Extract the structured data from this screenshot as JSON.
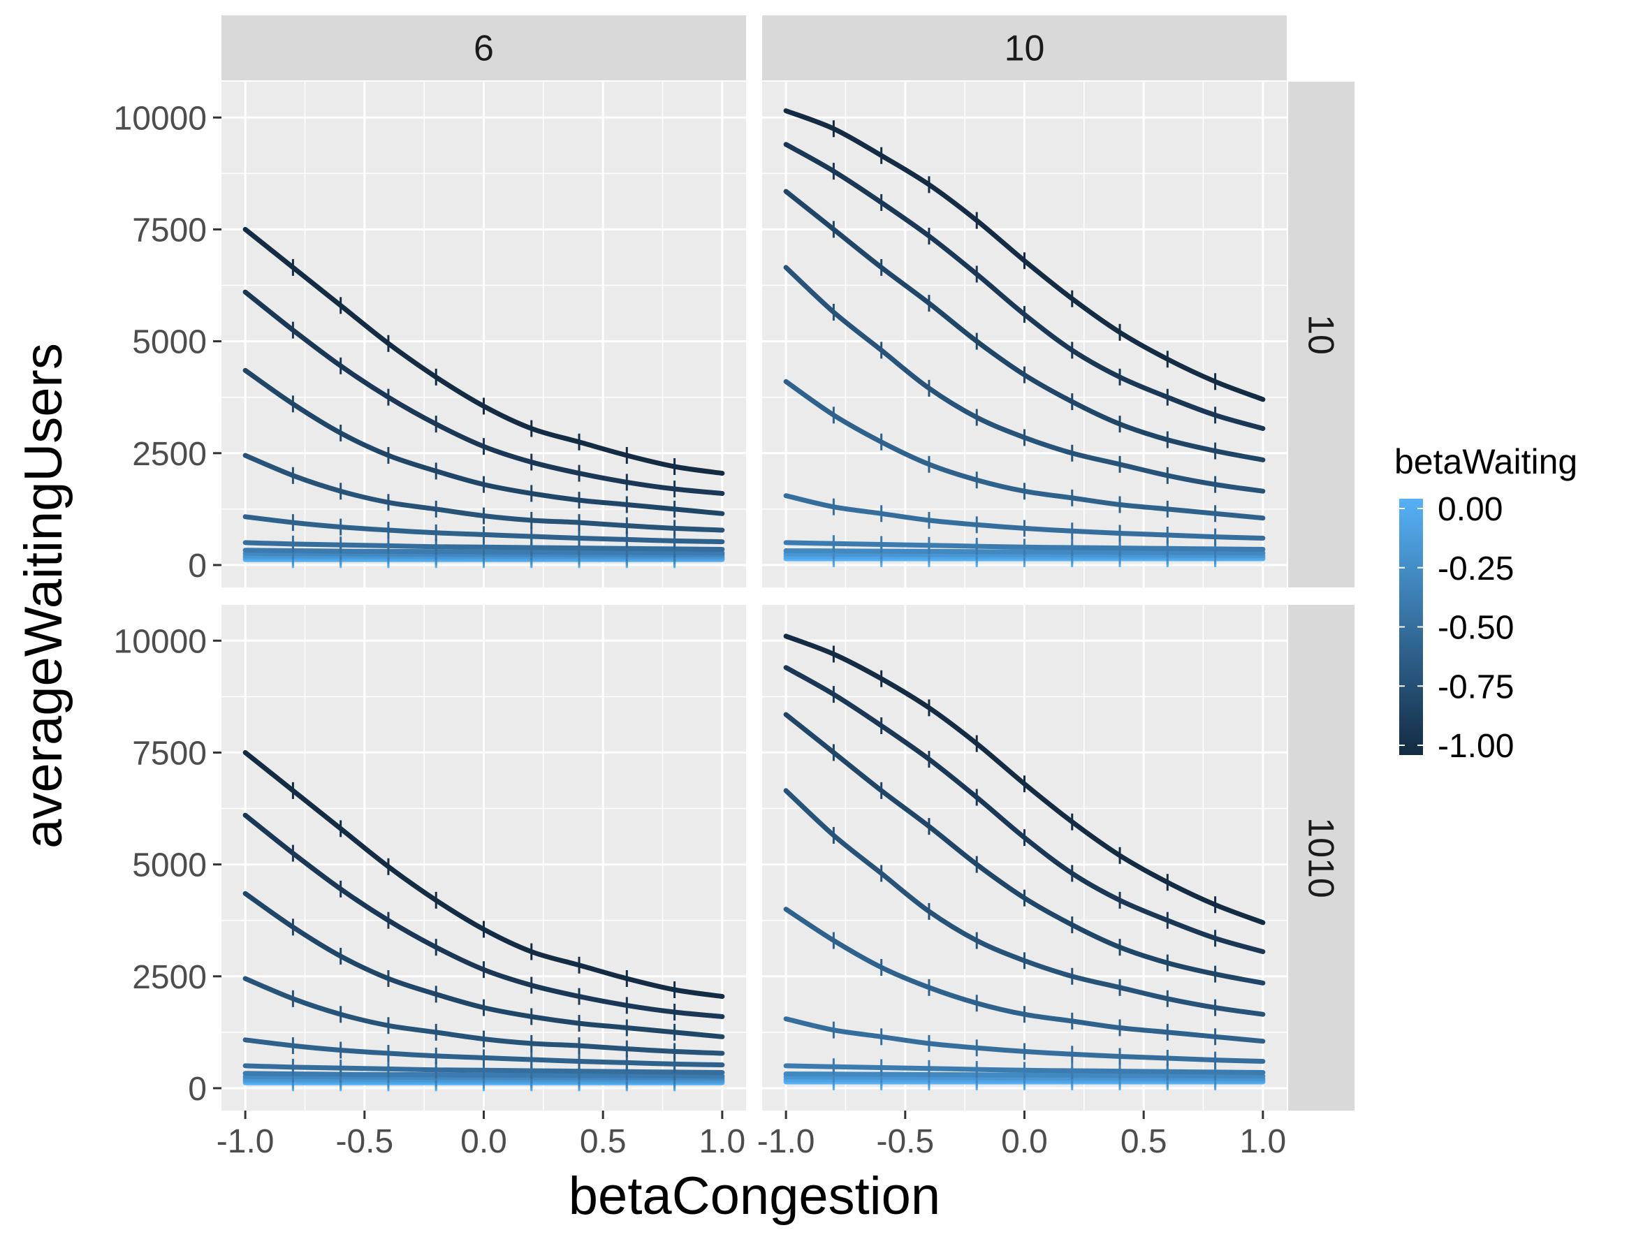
{
  "chart_data": {
    "type": "line",
    "xlabel": "betaCongestion",
    "ylabel": "averageWaitingUsers",
    "xlim": [
      -1.1,
      1.1
    ],
    "ylim": [
      -500,
      10800
    ],
    "x_ticks": [
      -1.0,
      -0.5,
      0.0,
      0.5,
      1.0
    ],
    "x_tick_labels": [
      "-1.0",
      "-0.5",
      "0.0",
      "0.5",
      "1.0"
    ],
    "y_ticks": [
      0,
      2500,
      5000,
      7500,
      10000
    ],
    "y_tick_labels": [
      "0",
      "2500",
      "5000",
      "7500",
      "10000"
    ],
    "grid": true,
    "x": [
      -1.0,
      -0.8,
      -0.6,
      -0.4,
      -0.2,
      0.0,
      0.2,
      0.4,
      0.6,
      0.8,
      1.0
    ],
    "column_strips": [
      "6",
      "10"
    ],
    "row_strips": [
      "10",
      "1010"
    ],
    "legend": {
      "title": "betaWaiting",
      "position": "right",
      "labels": [
        "0.00",
        "-0.25",
        "-0.50",
        "-0.75",
        "-1.00"
      ],
      "values": [
        0.0,
        -0.25,
        -0.5,
        -0.75,
        -1.0
      ],
      "color_low": "#132B43",
      "color_high": "#56B1F7"
    },
    "panels": [
      {
        "col": "6",
        "row": "10",
        "series": [
          {
            "betaWaiting": -1.0,
            "values": [
              7500,
              6650,
              5800,
              4950,
              4200,
              3550,
              3050,
              2750,
              2450,
              2200,
              2050
            ]
          },
          {
            "betaWaiting": -0.9,
            "values": [
              6100,
              5250,
              4450,
              3750,
              3150,
              2650,
              2300,
              2050,
              1850,
              1700,
              1600
            ]
          },
          {
            "betaWaiting": -0.8,
            "values": [
              4350,
              3600,
              2950,
              2450,
              2100,
              1800,
              1600,
              1450,
              1350,
              1250,
              1150
            ]
          },
          {
            "betaWaiting": -0.7,
            "values": [
              2450,
              2000,
              1650,
              1400,
              1250,
              1100,
              1000,
              950,
              880,
              820,
              780
            ]
          },
          {
            "betaWaiting": -0.6,
            "values": [
              1080,
              950,
              850,
              780,
              720,
              680,
              640,
              600,
              570,
              540,
              520
            ]
          },
          {
            "betaWaiting": -0.5,
            "values": [
              500,
              470,
              450,
              430,
              410,
              400,
              390,
              380,
              370,
              360,
              350
            ]
          },
          {
            "betaWaiting": -0.4,
            "values": [
              330,
              320,
              310,
              305,
              300,
              295,
              290,
              285,
              280,
              275,
              270
            ]
          },
          {
            "betaWaiting": -0.3,
            "values": [
              260,
              255,
              250,
              245,
              240,
              238,
              235,
              232,
              230,
              228,
              225
            ]
          },
          {
            "betaWaiting": -0.2,
            "values": [
              200,
              198,
              196,
              194,
              192,
              190,
              188,
              186,
              184,
              182,
              180
            ]
          },
          {
            "betaWaiting": -0.1,
            "values": [
              160,
              158,
              156,
              154,
              152,
              150,
              148,
              147,
              146,
              145,
              144
            ]
          },
          {
            "betaWaiting": 0.0,
            "values": [
              120,
              120,
              120,
              120,
              120,
              120,
              120,
              120,
              120,
              120,
              120
            ]
          }
        ]
      },
      {
        "col": "10",
        "row": "10",
        "series": [
          {
            "betaWaiting": -1.0,
            "values": [
              10150,
              9750,
              9150,
              8500,
              7700,
              6800,
              5950,
              5200,
              4600,
              4100,
              3700
            ]
          },
          {
            "betaWaiting": -0.9,
            "values": [
              9400,
              8800,
              8100,
              7350,
              6500,
              5600,
              4800,
              4200,
              3750,
              3350,
              3050
            ]
          },
          {
            "betaWaiting": -0.8,
            "values": [
              8350,
              7500,
              6650,
              5850,
              5000,
              4250,
              3650,
              3150,
              2800,
              2550,
              2350
            ]
          },
          {
            "betaWaiting": -0.7,
            "values": [
              6650,
              5650,
              4800,
              3950,
              3300,
              2850,
              2500,
              2250,
              2000,
              1800,
              1650
            ]
          },
          {
            "betaWaiting": -0.6,
            "values": [
              4100,
              3350,
              2750,
              2250,
              1900,
              1650,
              1500,
              1350,
              1250,
              1150,
              1050
            ]
          },
          {
            "betaWaiting": -0.5,
            "values": [
              1550,
              1300,
              1150,
              1000,
              900,
              820,
              760,
              710,
              670,
              630,
              600
            ]
          },
          {
            "betaWaiting": -0.4,
            "values": [
              500,
              480,
              460,
              440,
              420,
              400,
              390,
              380,
              370,
              360,
              350
            ]
          },
          {
            "betaWaiting": -0.3,
            "values": [
              320,
              315,
              310,
              305,
              300,
              295,
              290,
              285,
              280,
              275,
              270
            ]
          },
          {
            "betaWaiting": -0.2,
            "values": [
              250,
              246,
              242,
              238,
              234,
              230,
              226,
              222,
              218,
              214,
              210
            ]
          },
          {
            "betaWaiting": -0.1,
            "values": [
              190,
              188,
              186,
              184,
              182,
              180,
              178,
              176,
              174,
              172,
              170
            ]
          },
          {
            "betaWaiting": 0.0,
            "values": [
              140,
              140,
              140,
              140,
              140,
              140,
              140,
              140,
              140,
              140,
              140
            ]
          }
        ]
      },
      {
        "col": "6",
        "row": "1010",
        "series": [
          {
            "betaWaiting": -1.0,
            "values": [
              7500,
              6650,
              5800,
              4950,
              4200,
              3550,
              3050,
              2750,
              2450,
              2200,
              2050
            ]
          },
          {
            "betaWaiting": -0.9,
            "values": [
              6100,
              5250,
              4450,
              3750,
              3150,
              2650,
              2300,
              2050,
              1850,
              1700,
              1600
            ]
          },
          {
            "betaWaiting": -0.8,
            "values": [
              4350,
              3600,
              2950,
              2450,
              2100,
              1800,
              1600,
              1450,
              1350,
              1250,
              1150
            ]
          },
          {
            "betaWaiting": -0.7,
            "values": [
              2450,
              2000,
              1650,
              1400,
              1250,
              1100,
              1000,
              950,
              880,
              820,
              780
            ]
          },
          {
            "betaWaiting": -0.6,
            "values": [
              1080,
              950,
              850,
              780,
              720,
              680,
              640,
              600,
              570,
              540,
              520
            ]
          },
          {
            "betaWaiting": -0.5,
            "values": [
              500,
              470,
              450,
              430,
              410,
              400,
              390,
              380,
              370,
              360,
              350
            ]
          },
          {
            "betaWaiting": -0.4,
            "values": [
              330,
              320,
              310,
              305,
              300,
              295,
              290,
              285,
              280,
              275,
              270
            ]
          },
          {
            "betaWaiting": -0.3,
            "values": [
              260,
              255,
              250,
              245,
              240,
              238,
              235,
              232,
              230,
              228,
              225
            ]
          },
          {
            "betaWaiting": -0.2,
            "values": [
              200,
              198,
              196,
              194,
              192,
              190,
              188,
              186,
              184,
              182,
              180
            ]
          },
          {
            "betaWaiting": -0.1,
            "values": [
              160,
              158,
              156,
              154,
              152,
              150,
              148,
              147,
              146,
              145,
              144
            ]
          },
          {
            "betaWaiting": 0.0,
            "values": [
              120,
              120,
              120,
              120,
              120,
              120,
              120,
              120,
              120,
              120,
              120
            ]
          }
        ]
      },
      {
        "col": "10",
        "row": "1010",
        "series": [
          {
            "betaWaiting": -1.0,
            "values": [
              10100,
              9700,
              9150,
              8500,
              7700,
              6800,
              5950,
              5200,
              4600,
              4100,
              3700
            ]
          },
          {
            "betaWaiting": -0.9,
            "values": [
              9400,
              8800,
              8100,
              7350,
              6500,
              5600,
              4800,
              4200,
              3750,
              3350,
              3050
            ]
          },
          {
            "betaWaiting": -0.8,
            "values": [
              8350,
              7500,
              6650,
              5850,
              5000,
              4250,
              3650,
              3150,
              2800,
              2550,
              2350
            ]
          },
          {
            "betaWaiting": -0.7,
            "values": [
              6650,
              5650,
              4800,
              3950,
              3300,
              2850,
              2500,
              2250,
              2000,
              1800,
              1650
            ]
          },
          {
            "betaWaiting": -0.6,
            "values": [
              4000,
              3300,
              2700,
              2250,
              1900,
              1650,
              1500,
              1350,
              1250,
              1150,
              1050
            ]
          },
          {
            "betaWaiting": -0.5,
            "values": [
              1550,
              1300,
              1150,
              1000,
              900,
              820,
              760,
              710,
              670,
              630,
              600
            ]
          },
          {
            "betaWaiting": -0.4,
            "values": [
              500,
              480,
              460,
              440,
              420,
              400,
              390,
              380,
              370,
              360,
              350
            ]
          },
          {
            "betaWaiting": -0.3,
            "values": [
              320,
              315,
              310,
              305,
              300,
              295,
              290,
              285,
              280,
              275,
              270
            ]
          },
          {
            "betaWaiting": -0.2,
            "values": [
              250,
              246,
              242,
              238,
              234,
              230,
              226,
              222,
              218,
              214,
              210
            ]
          },
          {
            "betaWaiting": -0.1,
            "values": [
              190,
              188,
              186,
              184,
              182,
              180,
              178,
              176,
              174,
              172,
              170
            ]
          },
          {
            "betaWaiting": 0.0,
            "values": [
              140,
              140,
              140,
              140,
              140,
              140,
              140,
              140,
              140,
              140,
              140
            ]
          }
        ]
      }
    ]
  }
}
